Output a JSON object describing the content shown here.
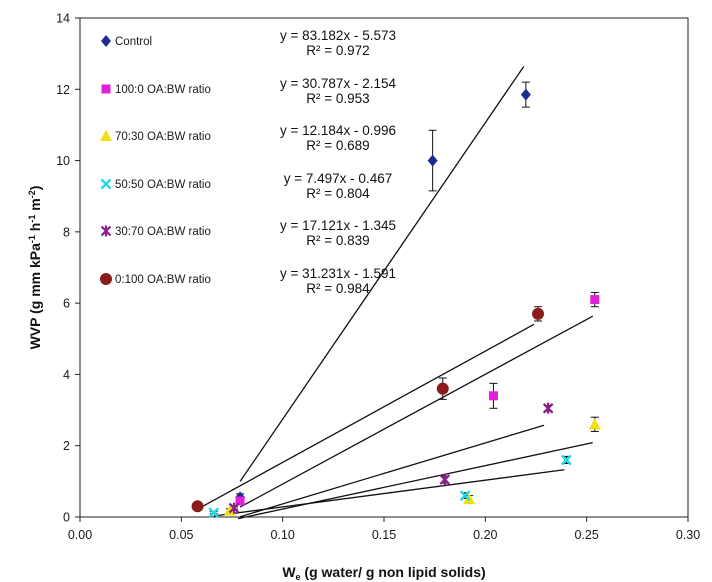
{
  "chart_data": {
    "type": "scatter",
    "title": "",
    "xlabel_main": "W",
    "xlabel_sub": "e",
    "xlabel_rest": " (g water/ g non lipid solids)",
    "ylabel_parts": [
      "WVP (g mm kPa",
      "-1",
      " h",
      "-1",
      " m",
      "-2",
      ")"
    ],
    "xlim": [
      0.0,
      0.3
    ],
    "ylim": [
      0,
      14
    ],
    "xticks": [
      0.0,
      0.05,
      0.1,
      0.15,
      0.2,
      0.25,
      0.3
    ],
    "xtick_labels": [
      "0.00",
      "0.05",
      "0.10",
      "0.15",
      "0.20",
      "0.25",
      "0.30"
    ],
    "yticks": [
      0,
      2,
      4,
      6,
      8,
      10,
      12,
      14
    ],
    "ytick_labels": [
      "0",
      "2",
      "4",
      "6",
      "8",
      "10",
      "12",
      "14"
    ],
    "grid": false,
    "legend_position": "top-left",
    "series": [
      {
        "name": "Control",
        "marker": "diamond",
        "color": "#1f2a8f",
        "points": [
          {
            "x": 0.079,
            "y": 0.55,
            "err": 0.1
          },
          {
            "x": 0.174,
            "y": 10.0,
            "err": 0.85
          },
          {
            "x": 0.22,
            "y": 11.85,
            "err": 0.35
          }
        ],
        "fit": {
          "slope": 83.182,
          "intercept": -5.573,
          "x_range": [
            0.079,
            0.219
          ]
        },
        "equation": "y = 83.182x - 5.573",
        "r2": "R² = 0.972"
      },
      {
        "name": "100:0 OA:BW ratio",
        "marker": "square",
        "color": "#e020d8",
        "points": [
          {
            "x": 0.079,
            "y": 0.45,
            "err": 0.08
          },
          {
            "x": 0.204,
            "y": 3.4,
            "err": 0.35
          },
          {
            "x": 0.254,
            "y": 6.1,
            "err": 0.2
          }
        ],
        "fit": {
          "slope": 30.787,
          "intercept": -2.154,
          "x_range": [
            0.079,
            0.253
          ]
        },
        "equation": "y = 30.787x - 2.154",
        "r2": "R² = 0.953"
      },
      {
        "name": "70:30 OA:BW ratio",
        "marker": "triangle",
        "color": "#f0e010",
        "points": [
          {
            "x": 0.074,
            "y": 0.18,
            "err": 0.05
          },
          {
            "x": 0.192,
            "y": 0.5,
            "err": 0.1
          },
          {
            "x": 0.254,
            "y": 2.6,
            "err": 0.2
          }
        ],
        "fit": {
          "slope": 12.184,
          "intercept": -0.996,
          "x_range": [
            0.078,
            0.253
          ]
        },
        "equation": "y = 12.184x - 0.996",
        "r2": "R² = 0.689"
      },
      {
        "name": "50:50 OA:BW ratio",
        "marker": "x",
        "color": "#20d8e8",
        "points": [
          {
            "x": 0.066,
            "y": 0.12,
            "err": 0.03
          },
          {
            "x": 0.19,
            "y": 0.6,
            "err": 0.08
          },
          {
            "x": 0.24,
            "y": 1.6,
            "err": 0.1
          }
        ],
        "fit": {
          "slope": 7.497,
          "intercept": -0.467,
          "x_range": [
            0.066,
            0.239
          ]
        },
        "equation": "y = 7.497x - 0.467",
        "r2": "R² = 0.804"
      },
      {
        "name": "30:70 OA:BW ratio",
        "marker": "star",
        "color": "#8a1f8a",
        "points": [
          {
            "x": 0.076,
            "y": 0.25,
            "err": 0.03
          },
          {
            "x": 0.18,
            "y": 1.05,
            "err": 0.1
          },
          {
            "x": 0.231,
            "y": 3.05,
            "err": 0.08
          }
        ],
        "fit": {
          "slope": 17.121,
          "intercept": -1.345,
          "x_range": [
            0.079,
            0.229
          ]
        },
        "equation": "y = 17.121x - 1.345",
        "r2": "R² = 0.839"
      },
      {
        "name": "0:100 OA:BW ratio",
        "marker": "circle",
        "color": "#8b1a1a",
        "points": [
          {
            "x": 0.058,
            "y": 0.3,
            "err": 0.05
          },
          {
            "x": 0.179,
            "y": 3.6,
            "err": 0.3
          },
          {
            "x": 0.226,
            "y": 5.7,
            "err": 0.2
          }
        ],
        "fit": {
          "slope": 31.231,
          "intercept": -1.591,
          "x_range": [
            0.058,
            0.224
          ]
        },
        "equation": "y = 31.231x - 1.591",
        "r2": "R² = 0.984"
      }
    ]
  }
}
